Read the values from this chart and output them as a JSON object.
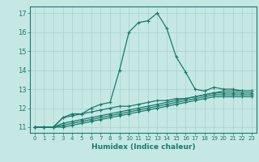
{
  "background_color": "#c5e8e5",
  "grid_color": "#a8d0cc",
  "line_color": "#1a7a6a",
  "xlabel": "Humidex (Indice chaleur)",
  "ylabel_ticks": [
    11,
    12,
    13,
    14,
    15,
    16,
    17
  ],
  "xlim": [
    -0.5,
    23.5
  ],
  "ylim": [
    10.7,
    17.35
  ],
  "series": [
    [
      11,
      11,
      11,
      11.5,
      11.7,
      11.7,
      12,
      12.2,
      12.3,
      14.0,
      16.0,
      16.5,
      16.6,
      17.0,
      16.2,
      14.7,
      13.9,
      13.0,
      12.9,
      13.1,
      13.0,
      13.0,
      12.9,
      12.9
    ],
    [
      11,
      11,
      11,
      11.5,
      11.6,
      11.7,
      11.8,
      11.9,
      12.0,
      12.1,
      12.1,
      12.2,
      12.3,
      12.4,
      12.4,
      12.5,
      12.5,
      12.6,
      12.7,
      12.8,
      12.9,
      12.9,
      12.9,
      12.9
    ],
    [
      11,
      11,
      11,
      11.2,
      11.3,
      11.4,
      11.5,
      11.6,
      11.7,
      11.8,
      11.9,
      12.0,
      12.1,
      12.2,
      12.3,
      12.4,
      12.5,
      12.6,
      12.7,
      12.8,
      12.8,
      12.8,
      12.8,
      12.8
    ],
    [
      11,
      11,
      11,
      11.1,
      11.2,
      11.3,
      11.4,
      11.5,
      11.6,
      11.7,
      11.8,
      11.9,
      12.0,
      12.1,
      12.2,
      12.3,
      12.4,
      12.5,
      12.6,
      12.7,
      12.7,
      12.7,
      12.7,
      12.7
    ],
    [
      11,
      11,
      11,
      11.0,
      11.1,
      11.2,
      11.3,
      11.4,
      11.5,
      11.6,
      11.7,
      11.8,
      11.9,
      12.0,
      12.1,
      12.2,
      12.3,
      12.4,
      12.5,
      12.6,
      12.6,
      12.6,
      12.6,
      12.6
    ]
  ],
  "xtick_labels": [
    "0",
    "1",
    "2",
    "3",
    "4",
    "5",
    "6",
    "7",
    "8",
    "9",
    "10",
    "11",
    "12",
    "13",
    "14",
    "15",
    "16",
    "17",
    "18",
    "19",
    "20",
    "21",
    "22",
    "23"
  ],
  "marker": "+",
  "markersize": 3.0,
  "linewidth": 0.9,
  "ytick_fontsize": 6.0,
  "xtick_fontsize": 5.0,
  "xlabel_fontsize": 6.5
}
